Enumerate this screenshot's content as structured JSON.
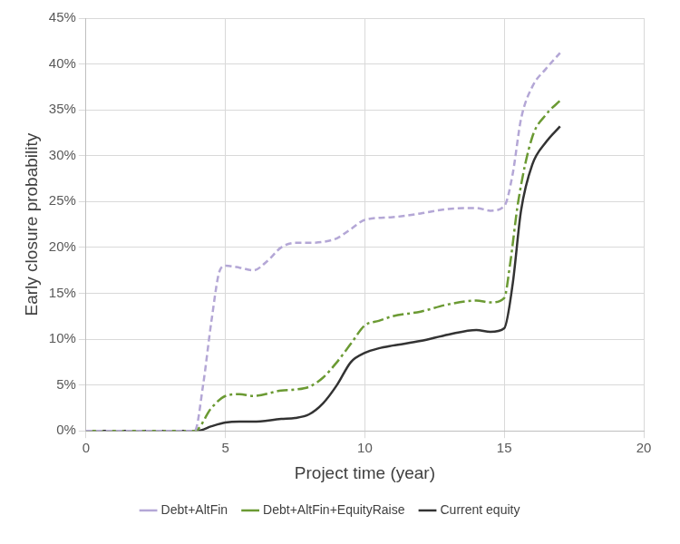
{
  "chart_data": {
    "type": "line",
    "x_label": "Project time (year)",
    "y_label": "Early closure probability",
    "xlim": [
      0,
      20
    ],
    "xticks": [
      0,
      5,
      10,
      15,
      20
    ],
    "ylim": [
      0,
      45
    ],
    "yticks": [
      {
        "value": 0,
        "label": "0%"
      },
      {
        "value": 5,
        "label": "5%"
      },
      {
        "value": 10,
        "label": "10%"
      },
      {
        "value": 15,
        "label": "15%"
      },
      {
        "value": 20,
        "label": "20%"
      },
      {
        "value": 25,
        "label": "25%"
      },
      {
        "value": 30,
        "label": "30%"
      },
      {
        "value": 35,
        "label": "35%"
      },
      {
        "value": 40,
        "label": "40%"
      },
      {
        "value": 45,
        "label": "45%"
      }
    ],
    "grid": true,
    "legend": "bottom",
    "series": [
      {
        "name": "Debt+AltFin",
        "color": "#b4a7d6",
        "line_style": "dashed",
        "x": [
          0,
          1,
          2,
          3,
          3.9,
          4.2,
          4.5,
          4.8,
          5,
          5.5,
          6,
          6.5,
          7,
          7.5,
          8,
          8.5,
          9,
          9.5,
          10,
          11,
          12,
          13,
          14,
          14.5,
          15,
          15.3,
          15.6,
          16,
          16.5,
          17
        ],
        "values": [
          0,
          0,
          0,
          0,
          0,
          5,
          12,
          17.5,
          18,
          17.8,
          17.5,
          18.5,
          20,
          20.5,
          20.5,
          20.6,
          21,
          22,
          23,
          23.3,
          23.7,
          24.2,
          24.3,
          24,
          24.5,
          28,
          34,
          37.5,
          39.5,
          41.2
        ]
      },
      {
        "name": "Debt+AltFin+EquityRaise",
        "color": "#6b9a33",
        "line_style": "dashdot",
        "x": [
          0,
          1,
          2,
          3,
          3.9,
          4.5,
          5,
          5.5,
          6,
          7,
          7.5,
          8,
          8.5,
          9,
          9.5,
          10,
          10.5,
          11,
          12,
          13,
          14,
          14.5,
          15,
          15.2,
          15.5,
          16,
          16.5,
          17
        ],
        "values": [
          0,
          0,
          0,
          0,
          0,
          2.5,
          3.8,
          4,
          3.8,
          4.4,
          4.5,
          4.8,
          5.8,
          7.5,
          9.5,
          11.5,
          12,
          12.5,
          13,
          13.8,
          14.2,
          14,
          14.5,
          18,
          25,
          32,
          34.5,
          36
        ]
      },
      {
        "name": "Current equity",
        "color": "#333333",
        "line_style": "solid",
        "x": [
          0,
          1,
          2,
          3,
          4,
          4.5,
          5,
          5.5,
          6,
          7,
          7.5,
          8,
          8.5,
          9,
          9.5,
          10,
          10.5,
          11,
          12,
          13,
          14,
          14.5,
          15,
          15.3,
          15.6,
          16,
          16.5,
          17
        ],
        "values": [
          0,
          0,
          0,
          0,
          0,
          0.5,
          0.9,
          1,
          1,
          1.3,
          1.4,
          1.8,
          3,
          5,
          7.5,
          8.5,
          9,
          9.3,
          9.8,
          10.5,
          11,
          10.8,
          11.2,
          16,
          24,
          29,
          31.5,
          33.2
        ]
      }
    ]
  }
}
